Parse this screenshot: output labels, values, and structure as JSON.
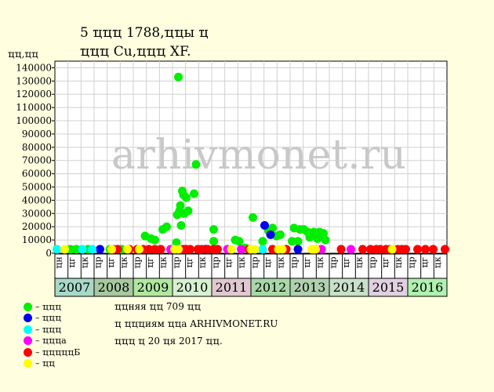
{
  "header": {
    "title": "5 ҵҵҵ 1788,ҵҵы ҵ",
    "subtitle": "ҵҵҵ Cu,ҵҵҵ XF.",
    "unit": "ҵҵ,ҵҵ"
  },
  "watermark": "arhivmonet.ru",
  "notes": [
    "ҵҵняя ҵҵ 709 ҵҵ",
    "ҵ ҵҵҵиям ҵҵа ARHIVMONET.RU",
    "ҵҵҵ ҵ 20 ҵя 2017 ҵҵ."
  ],
  "colors": {
    "background": "#ffffe0",
    "plot": "#ffffff",
    "grid": "#d0d0d0",
    "watermark": "#c8c8c8"
  },
  "legend": [
    {
      "label": "– ҵҵҵ",
      "color": "#00ee00"
    },
    {
      "label": "– ҵҵҵ",
      "color": "#0000ee"
    },
    {
      "label": "– ҵҵҵ",
      "color": "#00ffff"
    },
    {
      "label": "– ҵҵҵа",
      "color": "#ff00ff"
    },
    {
      "label": "– ҵҵҵҵҵБ",
      "color": "#ff0000"
    },
    {
      "label": "– ҵҵ",
      "color": "#ffff00"
    }
  ],
  "chart_data": {
    "type": "scatter",
    "y_ticks": [
      0,
      10000,
      20000,
      30000,
      40000,
      50000,
      60000,
      70000,
      80000,
      90000,
      100000,
      110000,
      120000,
      130000,
      140000
    ],
    "ylim": [
      0,
      145000
    ],
    "grid": true,
    "quarter_labels": [
      "ҵн",
      "ҵг",
      "ҵк"
    ],
    "years": [
      {
        "label": "2007",
        "color": "#a8d8c8",
        "quarters": [
          "ҵн",
          "ҵг",
          "ҵк"
        ]
      },
      {
        "label": "2008",
        "color": "#a8c8a0",
        "quarters": [
          "ҵр",
          "ҵг",
          "ҵк"
        ]
      },
      {
        "label": "2009",
        "color": "#b0e8a0",
        "quarters": [
          "ҵр",
          "ҵг",
          "ҵк"
        ]
      },
      {
        "label": "2010",
        "color": "#d8f0d0",
        "quarters": [
          "ҵр",
          "ҵг",
          "ҵк"
        ]
      },
      {
        "label": "2011",
        "color": "#e0c8d0",
        "quarters": [
          "ҵр",
          "ҵг",
          "ҵк"
        ]
      },
      {
        "label": "2012",
        "color": "#a8d8a8",
        "quarters": [
          "ҵр",
          "ҵг",
          "ҵк"
        ]
      },
      {
        "label": "2013",
        "color": "#b0d0b0",
        "quarters": [
          "ҵр",
          "ҵг",
          "ҵк"
        ]
      },
      {
        "label": "2014",
        "color": "#c8e0c8",
        "quarters": [
          "ҵр",
          "ҵг",
          "ҵк"
        ]
      },
      {
        "label": "2015",
        "color": "#e0d0e0",
        "quarters": [
          "ҵр",
          "ҵг",
          "ҵк"
        ]
      },
      {
        "label": "2016",
        "color": "#b0f0b0",
        "quarters": [
          "ҵр",
          "ҵг",
          "ҵк"
        ]
      }
    ],
    "series": [
      {
        "name": "– ҵҵҵ",
        "color": "#00ee00",
        "points": [
          [
            2007.4,
            3000
          ],
          [
            2007.55,
            3000
          ],
          [
            2007.85,
            3000
          ],
          [
            2008.4,
            3000
          ],
          [
            2008.7,
            3000
          ],
          [
            2009.3,
            13000
          ],
          [
            2009.45,
            11000
          ],
          [
            2009.55,
            10000
          ],
          [
            2009.75,
            18000
          ],
          [
            2009.85,
            20000
          ],
          [
            2010.1,
            8000
          ],
          [
            2010.12,
            29000
          ],
          [
            2010.15,
            133000
          ],
          [
            2010.18,
            32000
          ],
          [
            2010.2,
            36000
          ],
          [
            2010.22,
            21000
          ],
          [
            2010.25,
            47000
          ],
          [
            2010.28,
            44000
          ],
          [
            2010.3,
            30000
          ],
          [
            2010.35,
            42000
          ],
          [
            2010.4,
            32000
          ],
          [
            2010.55,
            45000
          ],
          [
            2010.6,
            67000
          ],
          [
            2011.05,
            18000
          ],
          [
            2011.05,
            9000
          ],
          [
            2011.6,
            10000
          ],
          [
            2011.7,
            9000
          ],
          [
            2011.85,
            4000
          ],
          [
            2012.05,
            27000
          ],
          [
            2012.3,
            9000
          ],
          [
            2012.45,
            17000
          ],
          [
            2012.55,
            19000
          ],
          [
            2012.65,
            13000
          ],
          [
            2012.75,
            14000
          ],
          [
            2013.05,
            9000
          ],
          [
            2013.1,
            19000
          ],
          [
            2013.2,
            9000
          ],
          [
            2013.25,
            18000
          ],
          [
            2013.35,
            18000
          ],
          [
            2013.45,
            16000
          ],
          [
            2013.5,
            12000
          ],
          [
            2013.55,
            15000
          ],
          [
            2013.6,
            16000
          ],
          [
            2013.65,
            13000
          ],
          [
            2013.7,
            11000
          ],
          [
            2013.75,
            16000
          ],
          [
            2013.8,
            14000
          ],
          [
            2013.85,
            15000
          ],
          [
            2013.9,
            10000
          ]
        ]
      },
      {
        "name": "– ҵҵҵ",
        "color": "#0000ee",
        "points": [
          [
            2008.15,
            3000
          ],
          [
            2010.85,
            3000
          ],
          [
            2012.35,
            21000
          ],
          [
            2012.5,
            14000
          ],
          [
            2013.2,
            3000
          ]
        ]
      },
      {
        "name": "– ҵҵҵ",
        "color": "#00ffff",
        "points": [
          [
            2007.05,
            3000
          ],
          [
            2007.7,
            3000
          ],
          [
            2007.95,
            3000
          ],
          [
            2010.7,
            3000
          ],
          [
            2012.3,
            3000
          ]
        ]
      },
      {
        "name": "– ҵҵҵа",
        "color": "#ff00ff",
        "points": [
          [
            2008.5,
            3000
          ],
          [
            2009.95,
            3000
          ],
          [
            2010.25,
            3000
          ],
          [
            2011.4,
            3000
          ],
          [
            2011.75,
            3000
          ],
          [
            2013.8,
            3000
          ],
          [
            2014.55,
            3000
          ]
        ]
      },
      {
        "name": "– ҵҵҵҵҵБ",
        "color": "#ff0000",
        "points": [
          [
            2008.6,
            3000
          ],
          [
            2008.9,
            3000
          ],
          [
            2009.1,
            3000
          ],
          [
            2009.25,
            3000
          ],
          [
            2009.4,
            3000
          ],
          [
            2009.55,
            3000
          ],
          [
            2009.7,
            3000
          ],
          [
            2010.3,
            3000
          ],
          [
            2010.35,
            3000
          ],
          [
            2010.45,
            3000
          ],
          [
            2010.65,
            3000
          ],
          [
            2010.75,
            3000
          ],
          [
            2010.9,
            3000
          ],
          [
            2011.05,
            3000
          ],
          [
            2011.15,
            3000
          ],
          [
            2011.95,
            3000
          ],
          [
            2012.55,
            3000
          ],
          [
            2012.9,
            3000
          ],
          [
            2014.3,
            3000
          ],
          [
            2014.85,
            3000
          ],
          [
            2015.05,
            3000
          ],
          [
            2015.2,
            3000
          ],
          [
            2015.3,
            3000
          ],
          [
            2015.45,
            3000
          ],
          [
            2015.55,
            3000
          ],
          [
            2015.75,
            3000
          ],
          [
            2015.85,
            3000
          ],
          [
            2015.95,
            3000
          ],
          [
            2016.25,
            3000
          ],
          [
            2016.45,
            3000
          ],
          [
            2016.65,
            3000
          ],
          [
            2016.95,
            3000
          ]
        ]
      },
      {
        "name": "– ҵҵ",
        "color": "#ffff00",
        "points": [
          [
            2007.25,
            3000
          ],
          [
            2008.45,
            3000
          ],
          [
            2008.85,
            3000
          ],
          [
            2009.15,
            3000
          ],
          [
            2010.05,
            3000
          ],
          [
            2010.15,
            3000
          ],
          [
            2011.5,
            3000
          ],
          [
            2012.0,
            3000
          ],
          [
            2012.1,
            3000
          ],
          [
            2012.7,
            3000
          ],
          [
            2012.8,
            3000
          ],
          [
            2013.55,
            3000
          ],
          [
            2013.6,
            3000
          ],
          [
            2013.65,
            3000
          ],
          [
            2015.6,
            3000
          ]
        ]
      }
    ]
  }
}
